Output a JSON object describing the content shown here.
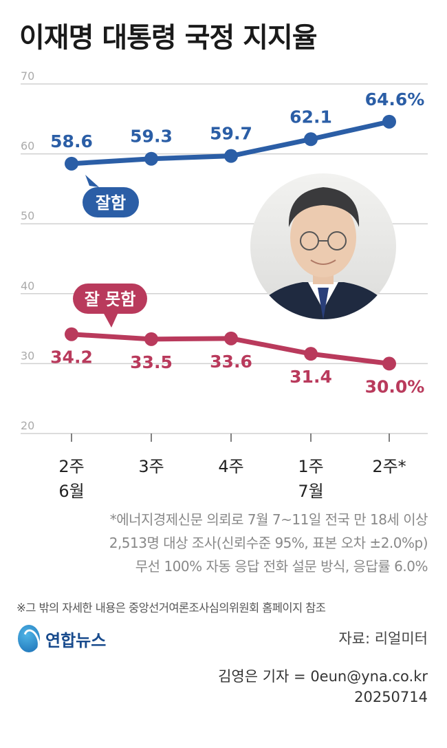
{
  "title": "이재명 대통령 국정 지지율",
  "chart_data": {
    "type": "line",
    "ylim": [
      20,
      70
    ],
    "yticks": [
      20,
      30,
      40,
      50,
      60,
      70
    ],
    "categories": [
      {
        "week": "2주",
        "month": "6월"
      },
      {
        "week": "3주",
        "month": ""
      },
      {
        "week": "4주",
        "month": ""
      },
      {
        "week": "1주",
        "month": "7월"
      },
      {
        "week": "2주*",
        "month": ""
      }
    ],
    "series": [
      {
        "name": "잘함",
        "color": "#2b5ea6",
        "values": [
          58.6,
          59.3,
          59.7,
          62.1,
          64.6
        ],
        "labels": [
          "58.6",
          "59.3",
          "59.7",
          "62.1",
          "64.6%"
        ]
      },
      {
        "name": "잘 못함",
        "color": "#b93a5c",
        "values": [
          34.2,
          33.5,
          33.6,
          31.4,
          30.0
        ],
        "labels": [
          "34.2",
          "33.5",
          "33.6",
          "31.4",
          "30.0%"
        ]
      }
    ],
    "grid": true
  },
  "notes": [
    "*에너지경제신문 의뢰로 7월 7~11일 전국 만 18세 이상",
    "2,513명 대상 조사(신뢰수준 95%, 표본 오차 ±2.0%p)",
    "무선 100% 자동 응답 전화 설문 방식, 응답률 6.0%"
  ],
  "reference": "※그 밖의 자세한 내용은 중앙선거여론조사심의위원회 홈페이지 참조",
  "logo_text": "연합뉴스",
  "source": "자료: 리얼미터",
  "credit": {
    "reporter": "김영은 기자 = 0eun@yna.co.kr",
    "date": "20250714"
  }
}
